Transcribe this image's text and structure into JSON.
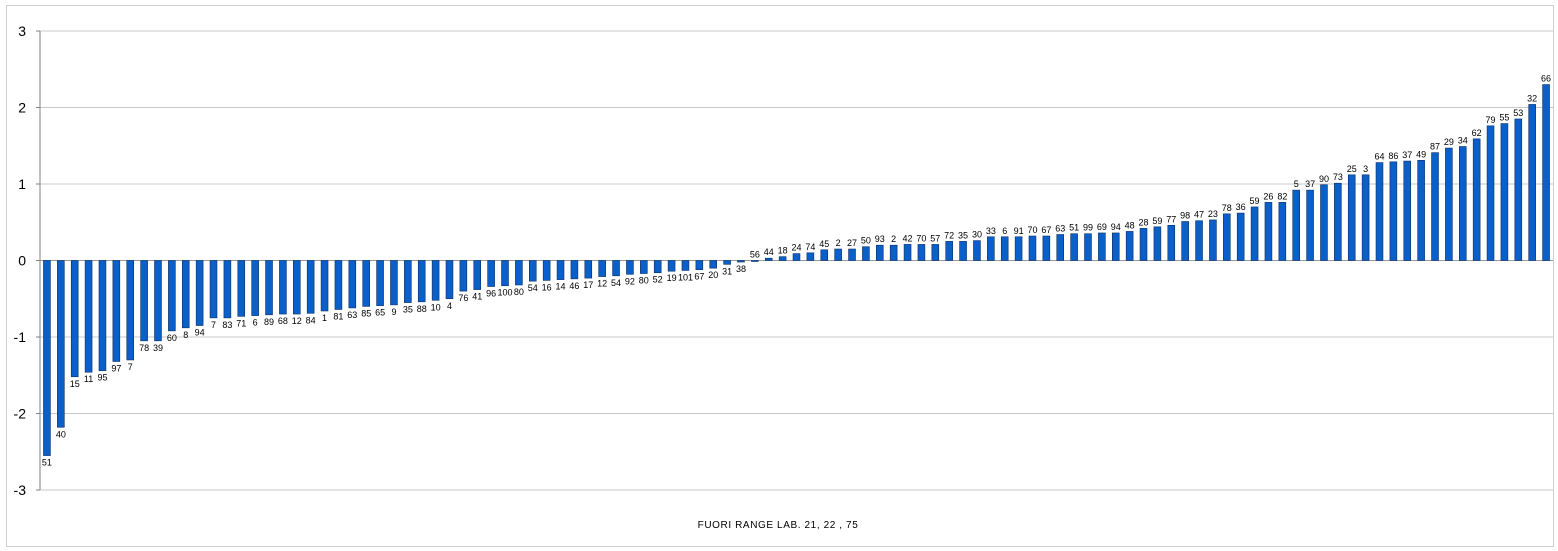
{
  "chart_data": {
    "type": "bar",
    "title": "",
    "xlabel": "FUORI RANGE  LAB. 21, 22 , 75",
    "ylabel": "",
    "ylim": [
      -3,
      3
    ],
    "yticks": [
      "3",
      "2",
      "1",
      "0",
      "-1",
      "-2",
      "-3"
    ],
    "grid": true,
    "legend": "none",
    "bar_color": "#0b5fc9",
    "categories": [
      "51",
      "40",
      "15",
      "11",
      "95",
      "97",
      "7",
      "78",
      "39",
      "60",
      "8",
      "94",
      "7",
      "83",
      "71",
      "6",
      "89",
      "68",
      "12",
      "84",
      "1",
      "81",
      "63",
      "85",
      "65",
      "9",
      "35",
      "88",
      "10",
      "4",
      "76",
      "41",
      "96",
      "100",
      "80",
      "54",
      "16",
      "14",
      "46",
      "17",
      "12",
      "54",
      "92",
      "80",
      "52",
      "19",
      "101",
      "67",
      "20",
      "31",
      "38",
      "56",
      "44",
      "18",
      "24",
      "74",
      "45",
      "2",
      "27",
      "50",
      "93",
      "2",
      "42",
      "70",
      "57",
      "72",
      "35",
      "30",
      "33",
      "6",
      "91",
      "70",
      "67",
      "63",
      "51",
      "99",
      "69",
      "94",
      "48",
      "28",
      "59",
      "77",
      "98",
      "47",
      "23",
      "78",
      "36",
      "59",
      "26",
      "82",
      "5",
      "37",
      "90",
      "73",
      "25",
      "3",
      "64",
      "86",
      "37",
      "49",
      "87",
      "29",
      "34",
      "62",
      "79",
      "55",
      "53",
      "32",
      "66"
    ],
    "values": [
      -2.55,
      -2.18,
      -1.52,
      -1.46,
      -1.44,
      -1.32,
      -1.3,
      -1.05,
      -1.05,
      -0.92,
      -0.88,
      -0.85,
      -0.75,
      -0.75,
      -0.73,
      -0.72,
      -0.71,
      -0.7,
      -0.7,
      -0.69,
      -0.66,
      -0.64,
      -0.62,
      -0.6,
      -0.59,
      -0.58,
      -0.55,
      -0.54,
      -0.52,
      -0.5,
      -0.4,
      -0.38,
      -0.34,
      -0.33,
      -0.32,
      -0.27,
      -0.26,
      -0.25,
      -0.24,
      -0.23,
      -0.21,
      -0.2,
      -0.18,
      -0.17,
      -0.16,
      -0.14,
      -0.13,
      -0.12,
      -0.1,
      -0.05,
      -0.02,
      0.0,
      0.03,
      0.05,
      0.09,
      0.1,
      0.14,
      0.15,
      0.15,
      0.18,
      0.2,
      0.2,
      0.21,
      0.21,
      0.21,
      0.25,
      0.25,
      0.26,
      0.31,
      0.31,
      0.31,
      0.32,
      0.32,
      0.34,
      0.35,
      0.35,
      0.36,
      0.36,
      0.38,
      0.42,
      0.44,
      0.46,
      0.51,
      0.52,
      0.53,
      0.61,
      0.62,
      0.7,
      0.76,
      0.76,
      0.92,
      0.92,
      0.99,
      1.01,
      1.12,
      1.12,
      1.28,
      1.29,
      1.3,
      1.31,
      1.41,
      1.47,
      1.49,
      1.59,
      1.76,
      1.79,
      1.85,
      2.04,
      2.3
    ]
  }
}
